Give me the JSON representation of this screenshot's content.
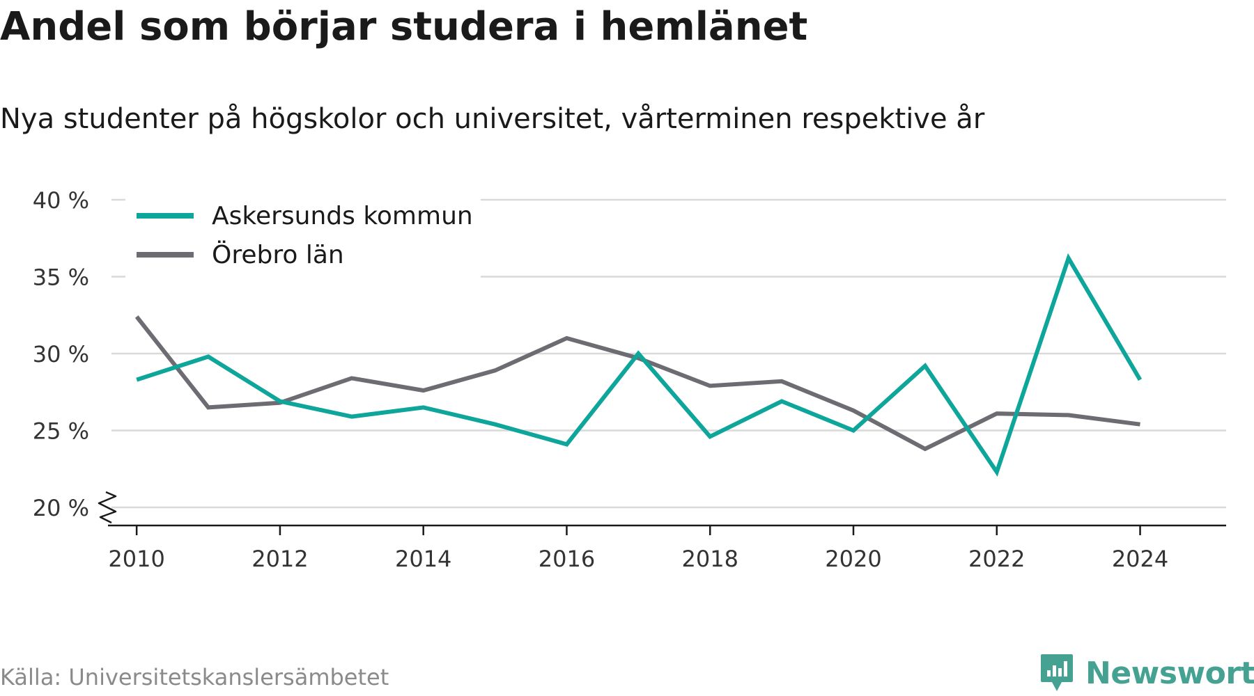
{
  "title": "Andel som börjar studera i hemlänet",
  "subtitle": "Nya studenter på högskolor och universitet, vårterminen respektive år",
  "source": "Källa: Universitetskanslersämbetet",
  "brand": {
    "name": "Newsworthy",
    "color": "#45a293",
    "icon": "bar-chart-icon"
  },
  "chart_data": {
    "type": "line",
    "x": [
      2010,
      2011,
      2012,
      2013,
      2014,
      2015,
      2016,
      2017,
      2018,
      2019,
      2020,
      2021,
      2022,
      2023,
      2024
    ],
    "x_ticks": [
      2010,
      2012,
      2014,
      2016,
      2018,
      2020,
      2022,
      2024
    ],
    "y_ticks": [
      20,
      25,
      30,
      35,
      40
    ],
    "y_tick_labels": [
      "20 %",
      "25 %",
      "30 %",
      "35 %",
      "40 %"
    ],
    "ylim": [
      20,
      40
    ],
    "y_axis_break": true,
    "grid": true,
    "legend_position": "top-left",
    "series": [
      {
        "name": "Askersunds kommun",
        "color": "#0ea59a",
        "values": [
          28.3,
          29.8,
          26.9,
          25.9,
          26.5,
          25.4,
          24.1,
          30.0,
          24.6,
          26.9,
          25.0,
          29.2,
          22.3,
          36.2,
          28.3
        ]
      },
      {
        "name": "Örebro län",
        "color": "#6d6c72",
        "values": [
          32.4,
          26.5,
          26.8,
          28.4,
          27.6,
          28.9,
          31.0,
          29.7,
          27.9,
          28.2,
          26.3,
          23.8,
          26.1,
          26.0,
          25.4
        ]
      }
    ]
  }
}
